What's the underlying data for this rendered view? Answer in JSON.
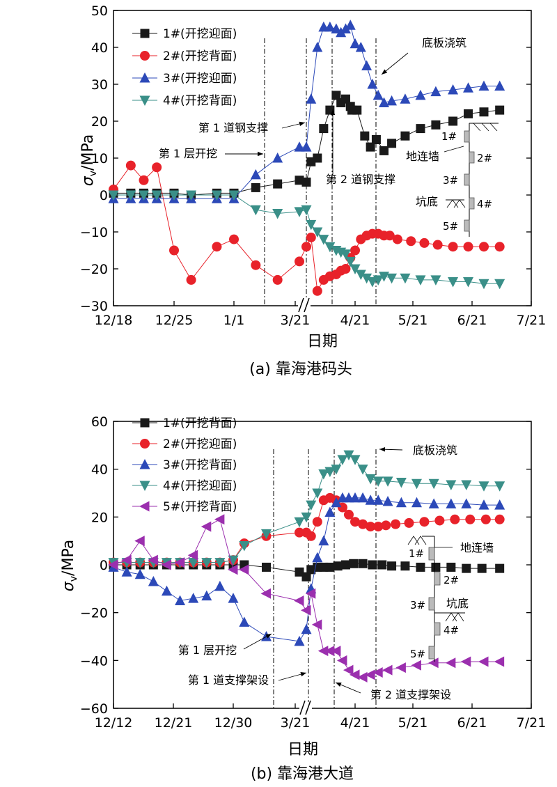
{
  "chart_data": [
    {
      "type": "line",
      "caption": "(a) 靠海港码头",
      "xlabel": "日期",
      "ylabel": "σ_v/MPa",
      "ylabel_sub": "v",
      "ylabel_rest": "/MPa",
      "ylim": [
        -30,
        50
      ],
      "y_ticks": [
        -30,
        -20,
        -10,
        0,
        10,
        20,
        30,
        40,
        50
      ],
      "x_ticks": [
        "12/18",
        "12/25",
        "1/1",
        "3/21",
        "4/21",
        "5/21",
        "6/21",
        "7/21"
      ],
      "axis_break": true,
      "legend_position": "top-left",
      "series": [
        {
          "name": "1#(开挖迎面)",
          "marker": "square",
          "color": "#1a1a1a",
          "x": [
            "12/18",
            "12/20",
            "12/21.5",
            "12/23",
            "12/25",
            "12/27",
            "12/30",
            "1/1",
            "1/6",
            "1/11",
            "1/16",
            "3/21",
            "3/24",
            "3/28",
            "4/01",
            "4/05",
            "4/09",
            "4/12",
            "4/15",
            "4/18",
            "4/19",
            "4/22",
            "4/26",
            "4/29",
            "5/02",
            "5/06",
            "5/10",
            "5/17",
            "5/25",
            "6/02",
            "6/11",
            "6/19",
            "6/27",
            "7/05"
          ],
          "y": [
            0.5,
            0.5,
            0.5,
            0.5,
            0.5,
            0,
            0.5,
            0.5,
            2,
            3,
            4,
            3.5,
            9,
            10,
            18,
            23,
            27,
            25,
            26,
            24,
            23,
            23,
            16,
            13,
            15,
            12,
            14,
            16,
            18,
            19,
            20,
            22,
            22.5,
            23
          ]
        },
        {
          "name": "2#(开挖背面)",
          "marker": "circle",
          "color": "#e8222a",
          "x": [
            "12/18",
            "12/20",
            "12/21.5",
            "12/23",
            "12/25",
            "12/27",
            "12/30",
            "1/1",
            "1/6",
            "1/11",
            "1/16",
            "3/21",
            "3/24",
            "3/28",
            "4/01",
            "4/05",
            "4/09",
            "4/12",
            "4/15",
            "4/18",
            "4/21",
            "4/24",
            "4/27",
            "4/30",
            "5/03",
            "5/06",
            "5/09",
            "5/13",
            "5/20",
            "5/27",
            "6/03",
            "6/11",
            "6/19",
            "6/27",
            "7/05"
          ],
          "y": [
            1.5,
            8,
            4,
            7.5,
            -15,
            -23,
            -14,
            -12,
            -19,
            -23,
            -18,
            -14,
            -11.5,
            -26,
            -23,
            -22,
            -21.5,
            -20.5,
            -20,
            -17,
            -15,
            -12,
            -11,
            -10.5,
            -10.5,
            -11,
            -11,
            -12,
            -12.5,
            -13,
            -13.5,
            -14,
            -14,
            -14,
            -14
          ]
        },
        {
          "name": "3#(开挖迎面)",
          "marker": "triangle-up",
          "color": "#2c49b8",
          "x": [
            "12/18",
            "12/20",
            "12/21.5",
            "12/23",
            "12/25",
            "12/27",
            "12/30",
            "1/1",
            "1/6",
            "1/11",
            "1/16",
            "3/21",
            "3/24",
            "3/28",
            "4/01",
            "4/05",
            "4/09",
            "4/12",
            "4/15",
            "4/18",
            "4/21",
            "4/24",
            "4/27",
            "4/30",
            "5/03",
            "5/06",
            "5/10",
            "5/17",
            "5/25",
            "6/02",
            "6/11",
            "6/19",
            "6/27",
            "7/05"
          ],
          "y": [
            -1,
            -1,
            -1,
            -1,
            -1,
            -1,
            -1,
            -1,
            5.5,
            10,
            13,
            13,
            26,
            40,
            45.5,
            45.5,
            45,
            44,
            45,
            46,
            41,
            40,
            35,
            30,
            27,
            25,
            25.5,
            26,
            27,
            28,
            28.5,
            29,
            29.5,
            29.5
          ]
        },
        {
          "name": "4#(开挖背面)",
          "marker": "triangle-down",
          "color": "#3a8f88",
          "x": [
            "12/18",
            "12/20",
            "12/21.5",
            "12/23",
            "12/25",
            "12/27",
            "12/30",
            "1/1",
            "1/6",
            "1/11",
            "1/16",
            "3/21",
            "3/24",
            "3/28",
            "4/01",
            "4/05",
            "4/09",
            "4/12",
            "4/15",
            "4/18",
            "4/21",
            "4/24",
            "4/27",
            "4/30",
            "5/03",
            "5/06",
            "5/10",
            "5/17",
            "5/25",
            "6/02",
            "6/11",
            "6/19",
            "6/27",
            "7/05"
          ],
          "y": [
            0,
            0,
            0,
            0,
            0,
            0,
            0,
            0,
            -4,
            -5,
            -4.5,
            -4,
            -8,
            -10,
            -12,
            -14,
            -15,
            -15.5,
            -16,
            -18,
            -20,
            -21.5,
            -22.5,
            -23.5,
            -23,
            -22,
            -22.5,
            -22.5,
            -23,
            -23,
            -23.5,
            -23.5,
            -24,
            -24
          ]
        }
      ],
      "annotations": [
        {
          "text": "第 1 层开挖",
          "x": "1/16"
        },
        {
          "text": "第 1 道钢支撑",
          "x": "3/21"
        },
        {
          "text": "第 2 道钢支撑",
          "x": "4/09"
        },
        {
          "text": "底板浇筑",
          "x": "5/05"
        }
      ],
      "inset": {
        "labels": [
          "1#",
          "2#",
          "3#",
          "4#",
          "5#"
        ],
        "wall": "地连墙",
        "pit": "坑底"
      }
    },
    {
      "type": "line",
      "caption": "(b) 靠海港大道",
      "xlabel": "日期",
      "ylabel": "σ_v/MPa",
      "ylabel_sub": "v",
      "ylabel_rest": "/MPa",
      "ylim": [
        -60,
        60
      ],
      "y_ticks": [
        -60,
        -40,
        -20,
        0,
        20,
        40,
        60
      ],
      "x_ticks": [
        "12/12",
        "12/21",
        "12/30",
        "3/21",
        "4/21",
        "5/21",
        "6/21",
        "7/21"
      ],
      "axis_break": true,
      "legend_position": "top-left",
      "series": [
        {
          "name": "1#(开挖背面)",
          "marker": "square",
          "color": "#1a1a1a",
          "x": [
            "12/12",
            "12/14",
            "12/16",
            "12/18",
            "12/20",
            "12/22",
            "12/24",
            "12/26",
            "12/28",
            "12/30",
            "12/31",
            "1/2",
            "1/5",
            "3/21",
            "3/24",
            "3/28",
            "4/01",
            "4/05",
            "4/10",
            "4/15",
            "4/20",
            "4/25",
            "4/30",
            "5/05",
            "5/10",
            "5/17",
            "5/25",
            "6/02",
            "6/10",
            "6/18",
            "6/26",
            "7/05"
          ],
          "y": [
            0,
            0,
            0,
            0,
            0,
            0,
            0,
            0,
            0,
            0,
            0,
            -1,
            -3,
            -5,
            -2,
            -1,
            -1,
            -1,
            -0.5,
            0,
            0.5,
            0.5,
            0,
            0,
            -0.5,
            -0.5,
            -1,
            -1,
            -1,
            -1.5,
            -1.5,
            -1.5
          ]
        },
        {
          "name": "2#(开挖迎面)",
          "marker": "circle",
          "color": "#e8222a",
          "x": [
            "12/12",
            "12/14",
            "12/16",
            "12/18",
            "12/20",
            "12/22",
            "12/24",
            "12/26",
            "12/28",
            "12/30",
            "12/31",
            "1/2",
            "1/5",
            "3/21",
            "3/24",
            "3/28",
            "4/01",
            "4/05",
            "4/09",
            "4/13",
            "4/17",
            "4/21",
            "4/25",
            "4/29",
            "5/03",
            "5/07",
            "5/12",
            "5/19",
            "5/27",
            "6/04",
            "6/12",
            "6/20",
            "6/28",
            "7/05"
          ],
          "y": [
            1,
            1,
            1,
            1,
            1,
            1,
            1,
            1,
            1,
            2,
            9,
            12,
            13.5,
            13.5,
            12,
            18,
            27,
            28,
            27,
            24,
            21,
            18,
            17,
            16,
            16,
            16.5,
            17,
            17.5,
            18,
            18.5,
            19,
            19,
            19,
            19
          ]
        },
        {
          "name": "3#(开挖背面)",
          "marker": "triangle-up",
          "color": "#2c49b8",
          "x": [
            "12/12",
            "12/14",
            "12/16",
            "12/18",
            "12/20",
            "12/22",
            "12/24",
            "12/26",
            "12/28",
            "12/30",
            "12/31",
            "1/2",
            "1/5",
            "3/21",
            "3/24",
            "3/28",
            "4/01",
            "4/05",
            "4/09",
            "4/13",
            "4/17",
            "4/21",
            "4/25",
            "4/29",
            "5/03",
            "5/08",
            "5/15",
            "5/23",
            "6/01",
            "6/10",
            "6/18",
            "6/27",
            "7/05"
          ],
          "y": [
            -1,
            -3,
            -4,
            -7,
            -11,
            -15,
            -14,
            -13,
            -9,
            -14,
            -24,
            -30,
            -32,
            -27,
            -10,
            3,
            10,
            22,
            26,
            28,
            28,
            28,
            28,
            27,
            27,
            26.5,
            26,
            26,
            25.5,
            25.5,
            25.5,
            25,
            25
          ]
        },
        {
          "name": "4#(开挖迎面)",
          "marker": "triangle-down",
          "color": "#3a8f88",
          "x": [
            "12/12",
            "12/14",
            "12/16",
            "12/18",
            "12/20",
            "12/22",
            "12/24",
            "12/26",
            "12/28",
            "12/30",
            "12/31",
            "1/2",
            "1/5",
            "3/21",
            "3/24",
            "3/28",
            "4/01",
            "4/05",
            "4/09",
            "4/13",
            "4/17",
            "4/21",
            "4/25",
            "4/29",
            "5/03",
            "5/08",
            "5/15",
            "5/23",
            "6/01",
            "6/10",
            "6/18",
            "6/27",
            "7/05"
          ],
          "y": [
            1,
            1,
            1,
            1,
            1,
            1,
            1,
            1,
            1,
            2,
            8,
            13,
            18,
            20,
            25,
            30,
            38,
            39,
            40,
            44,
            46,
            44,
            40,
            36,
            35,
            35,
            34.5,
            34,
            34,
            33.5,
            33.5,
            33,
            33
          ]
        },
        {
          "name": "5#(开挖背面)",
          "marker": "triangle-left",
          "color": "#9b2fae",
          "x": [
            "12/12",
            "12/14",
            "12/16",
            "12/18",
            "12/20",
            "12/22",
            "12/24",
            "12/26",
            "12/28",
            "12/30",
            "12/31",
            "1/2",
            "1/5",
            "3/21",
            "3/24",
            "3/28",
            "4/01",
            "4/05",
            "4/09",
            "4/13",
            "4/17",
            "4/21",
            "4/25",
            "4/29",
            "5/03",
            "5/08",
            "5/15",
            "5/23",
            "6/01",
            "6/10",
            "6/18",
            "6/27",
            "7/05"
          ],
          "y": [
            0,
            2,
            10,
            2,
            0,
            1,
            4,
            16,
            19,
            -2,
            -2,
            -12,
            -15,
            -19,
            -12,
            -25,
            -36,
            -36,
            -36,
            -40,
            -44,
            -46,
            -47,
            -46,
            -45,
            -44,
            -43,
            -42,
            -41,
            -41,
            -40.5,
            -40.5,
            -40.5
          ]
        }
      ],
      "annotations": [
        {
          "text": "第 1 层开挖",
          "x": "1/2"
        },
        {
          "text": "第 1 道支撑架设",
          "x": "3/21"
        },
        {
          "text": "第 2 道支撑架设",
          "x": "4/09"
        },
        {
          "text": "底板浇筑",
          "x": "5/05"
        }
      ],
      "inset": {
        "labels": [
          "1#",
          "2#",
          "3#",
          "4#",
          "5#"
        ],
        "wall": "地连墙",
        "pit": "坑底"
      }
    }
  ]
}
